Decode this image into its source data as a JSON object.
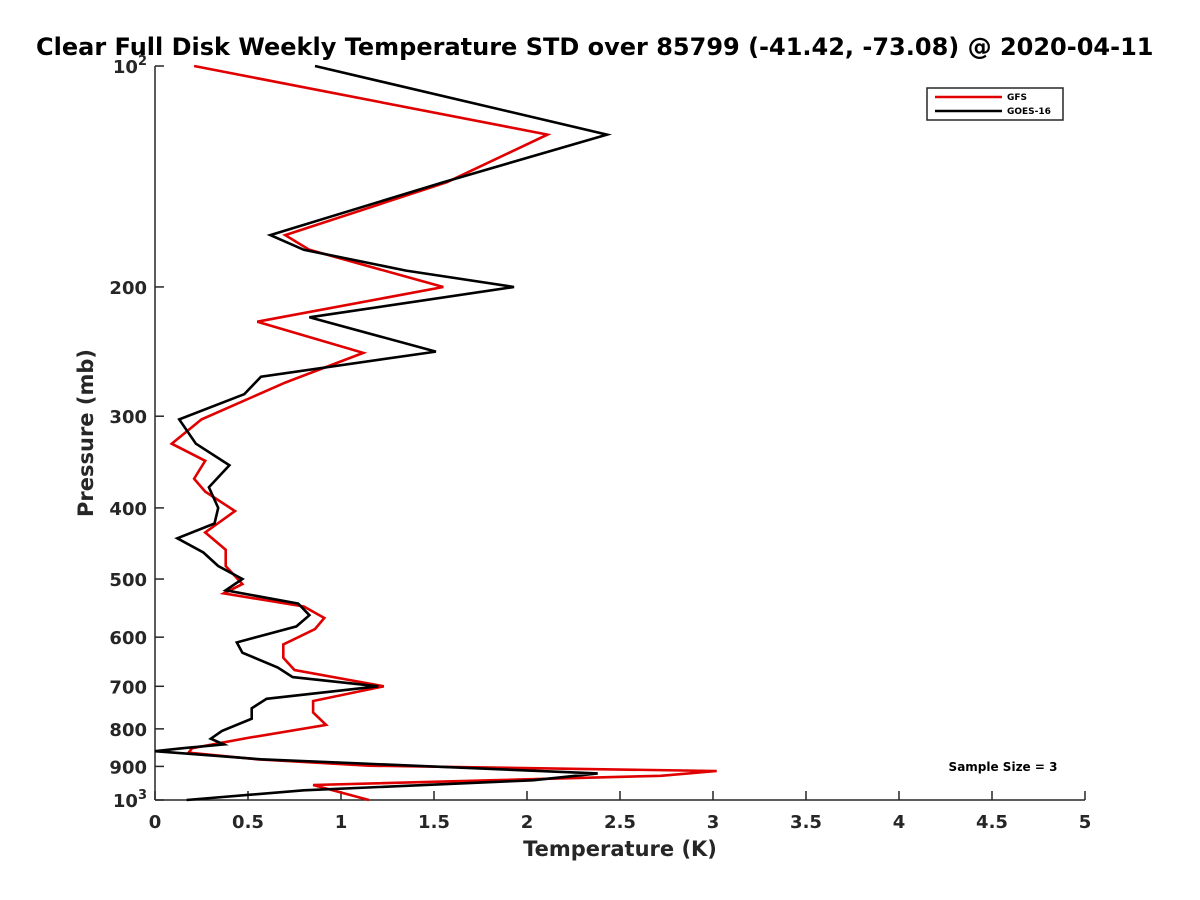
{
  "chart_data": {
    "type": "line",
    "title": "Clear Full Disk Weekly Temperature STD over 85799 (-41.42, -73.08) @ 2020-04-11",
    "xlabel": "Temperature (K)",
    "ylabel": "Pressure (mb)",
    "xlim": [
      0,
      5
    ],
    "ylim": [
      100,
      1000
    ],
    "yscale": "log",
    "y_reversed": true,
    "x_ticks": [
      "0",
      "0.5",
      "1",
      "1.5",
      "2",
      "2.5",
      "3",
      "3.5",
      "4",
      "4.5",
      "5"
    ],
    "x_tick_values": [
      0,
      0.5,
      1,
      1.5,
      2,
      2.5,
      3,
      3.5,
      4,
      4.5,
      5
    ],
    "y_ticks": [
      {
        "value": 100,
        "base": "10",
        "exp": "2"
      },
      {
        "value": 200,
        "label": "200"
      },
      {
        "value": 300,
        "label": "300"
      },
      {
        "value": 400,
        "label": "400"
      },
      {
        "value": 500,
        "label": "500"
      },
      {
        "value": 600,
        "label": "600"
      },
      {
        "value": 700,
        "label": "700"
      },
      {
        "value": 800,
        "label": "800"
      },
      {
        "value": 900,
        "label": "900"
      },
      {
        "value": 1000,
        "base": "10",
        "exp": "3"
      }
    ],
    "grid": false,
    "legend_position": "top-right",
    "annotation": "Sample Size = 3",
    "series": [
      {
        "name": "GFS",
        "color": "#e00000",
        "points": [
          [
            0.21,
            100
          ],
          [
            2.11,
            124
          ],
          [
            1.57,
            144
          ],
          [
            0.7,
            170
          ],
          [
            0.83,
            178
          ],
          [
            1.55,
            200
          ],
          [
            0.55,
            223
          ],
          [
            1.12,
            246
          ],
          [
            0.7,
            270
          ],
          [
            0.25,
            303
          ],
          [
            0.09,
            327
          ],
          [
            0.27,
            345
          ],
          [
            0.21,
            365
          ],
          [
            0.27,
            380
          ],
          [
            0.43,
            404
          ],
          [
            0.27,
            432
          ],
          [
            0.38,
            456
          ],
          [
            0.38,
            480
          ],
          [
            0.47,
            508
          ],
          [
            0.37,
            523
          ],
          [
            0.8,
            545
          ],
          [
            0.91,
            565
          ],
          [
            0.86,
            585
          ],
          [
            0.69,
            614
          ],
          [
            0.69,
            640
          ],
          [
            0.75,
            665
          ],
          [
            1.23,
            700
          ],
          [
            0.85,
            733
          ],
          [
            0.85,
            760
          ],
          [
            0.92,
            790
          ],
          [
            0.5,
            823
          ],
          [
            0.2,
            850
          ],
          [
            0.18,
            862
          ],
          [
            0.55,
            880
          ],
          [
            1.15,
            898
          ],
          [
            3.02,
            913
          ],
          [
            2.72,
            927
          ],
          [
            0.85,
            954
          ],
          [
            1.15,
            1000
          ]
        ]
      },
      {
        "name": "GOES-16",
        "color": "#000000",
        "points": [
          [
            0.86,
            100
          ],
          [
            2.43,
            124
          ],
          [
            1.55,
            144
          ],
          [
            0.62,
            170
          ],
          [
            0.8,
            178
          ],
          [
            1.35,
            190
          ],
          [
            1.93,
            200
          ],
          [
            0.83,
            220
          ],
          [
            1.51,
            245
          ],
          [
            0.57,
            265
          ],
          [
            0.48,
            280
          ],
          [
            0.13,
            303
          ],
          [
            0.22,
            327
          ],
          [
            0.4,
            350
          ],
          [
            0.29,
            375
          ],
          [
            0.34,
            400
          ],
          [
            0.32,
            420
          ],
          [
            0.12,
            440
          ],
          [
            0.26,
            460
          ],
          [
            0.34,
            480
          ],
          [
            0.47,
            500
          ],
          [
            0.38,
            518
          ],
          [
            0.77,
            540
          ],
          [
            0.83,
            560
          ],
          [
            0.76,
            580
          ],
          [
            0.44,
            610
          ],
          [
            0.47,
            630
          ],
          [
            0.66,
            660
          ],
          [
            0.74,
            680
          ],
          [
            1.2,
            700
          ],
          [
            0.6,
            728
          ],
          [
            0.52,
            750
          ],
          [
            0.52,
            775
          ],
          [
            0.36,
            805
          ],
          [
            0.3,
            825
          ],
          [
            0.37,
            840
          ],
          [
            0.15,
            850
          ],
          [
            0.0,
            858
          ],
          [
            0.57,
            880
          ],
          [
            2.38,
            920
          ],
          [
            2.03,
            940
          ],
          [
            0.8,
            970
          ],
          [
            0.17,
            1000
          ]
        ]
      }
    ]
  }
}
